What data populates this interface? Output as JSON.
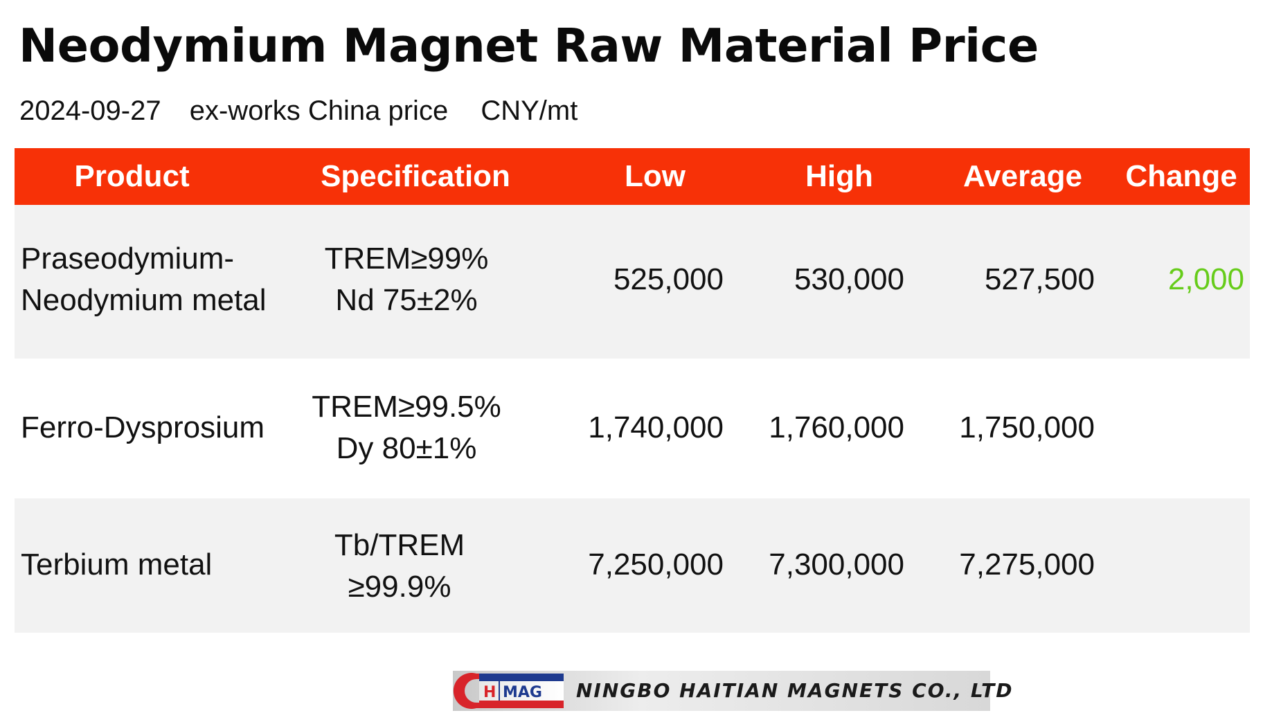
{
  "title": "Neodymium Magnet Raw Material Price",
  "subtitle": {
    "date": "2024-09-27",
    "basis": "ex-works China price",
    "unit": "CNY/mt"
  },
  "colors": {
    "header_bg": "#f73107",
    "header_text": "#ffffff",
    "row_alt_bg": "#f2f2f2",
    "change_up": "#66cc1a"
  },
  "table": {
    "headers": [
      "Product",
      "Specification",
      "Low",
      "High",
      "Average",
      "Change"
    ],
    "rows": [
      {
        "product": [
          "Praseodymium-",
          "Neodymium metal"
        ],
        "spec": [
          "TREM≥99%",
          "Nd 75±2%"
        ],
        "low": "525,000",
        "high": "530,000",
        "average": "527,500",
        "change": "2,000"
      },
      {
        "product": [
          "Ferro-Dysprosium"
        ],
        "spec": [
          "TREM≥99.5%",
          "Dy 80±1%"
        ],
        "low": "1,740,000",
        "high": "1,760,000",
        "average": "1,750,000",
        "change": ""
      },
      {
        "product": [
          "Terbium metal"
        ],
        "spec": [
          "Tb/TREM",
          "≥99.9%"
        ],
        "low": "7,250,000",
        "high": "7,300,000",
        "average": "7,275,000",
        "change": ""
      }
    ]
  },
  "logo": {
    "mark_letters": [
      "H",
      "MAG"
    ],
    "company": "NINGBO HAITIAN MAGNETS CO., LTD"
  }
}
